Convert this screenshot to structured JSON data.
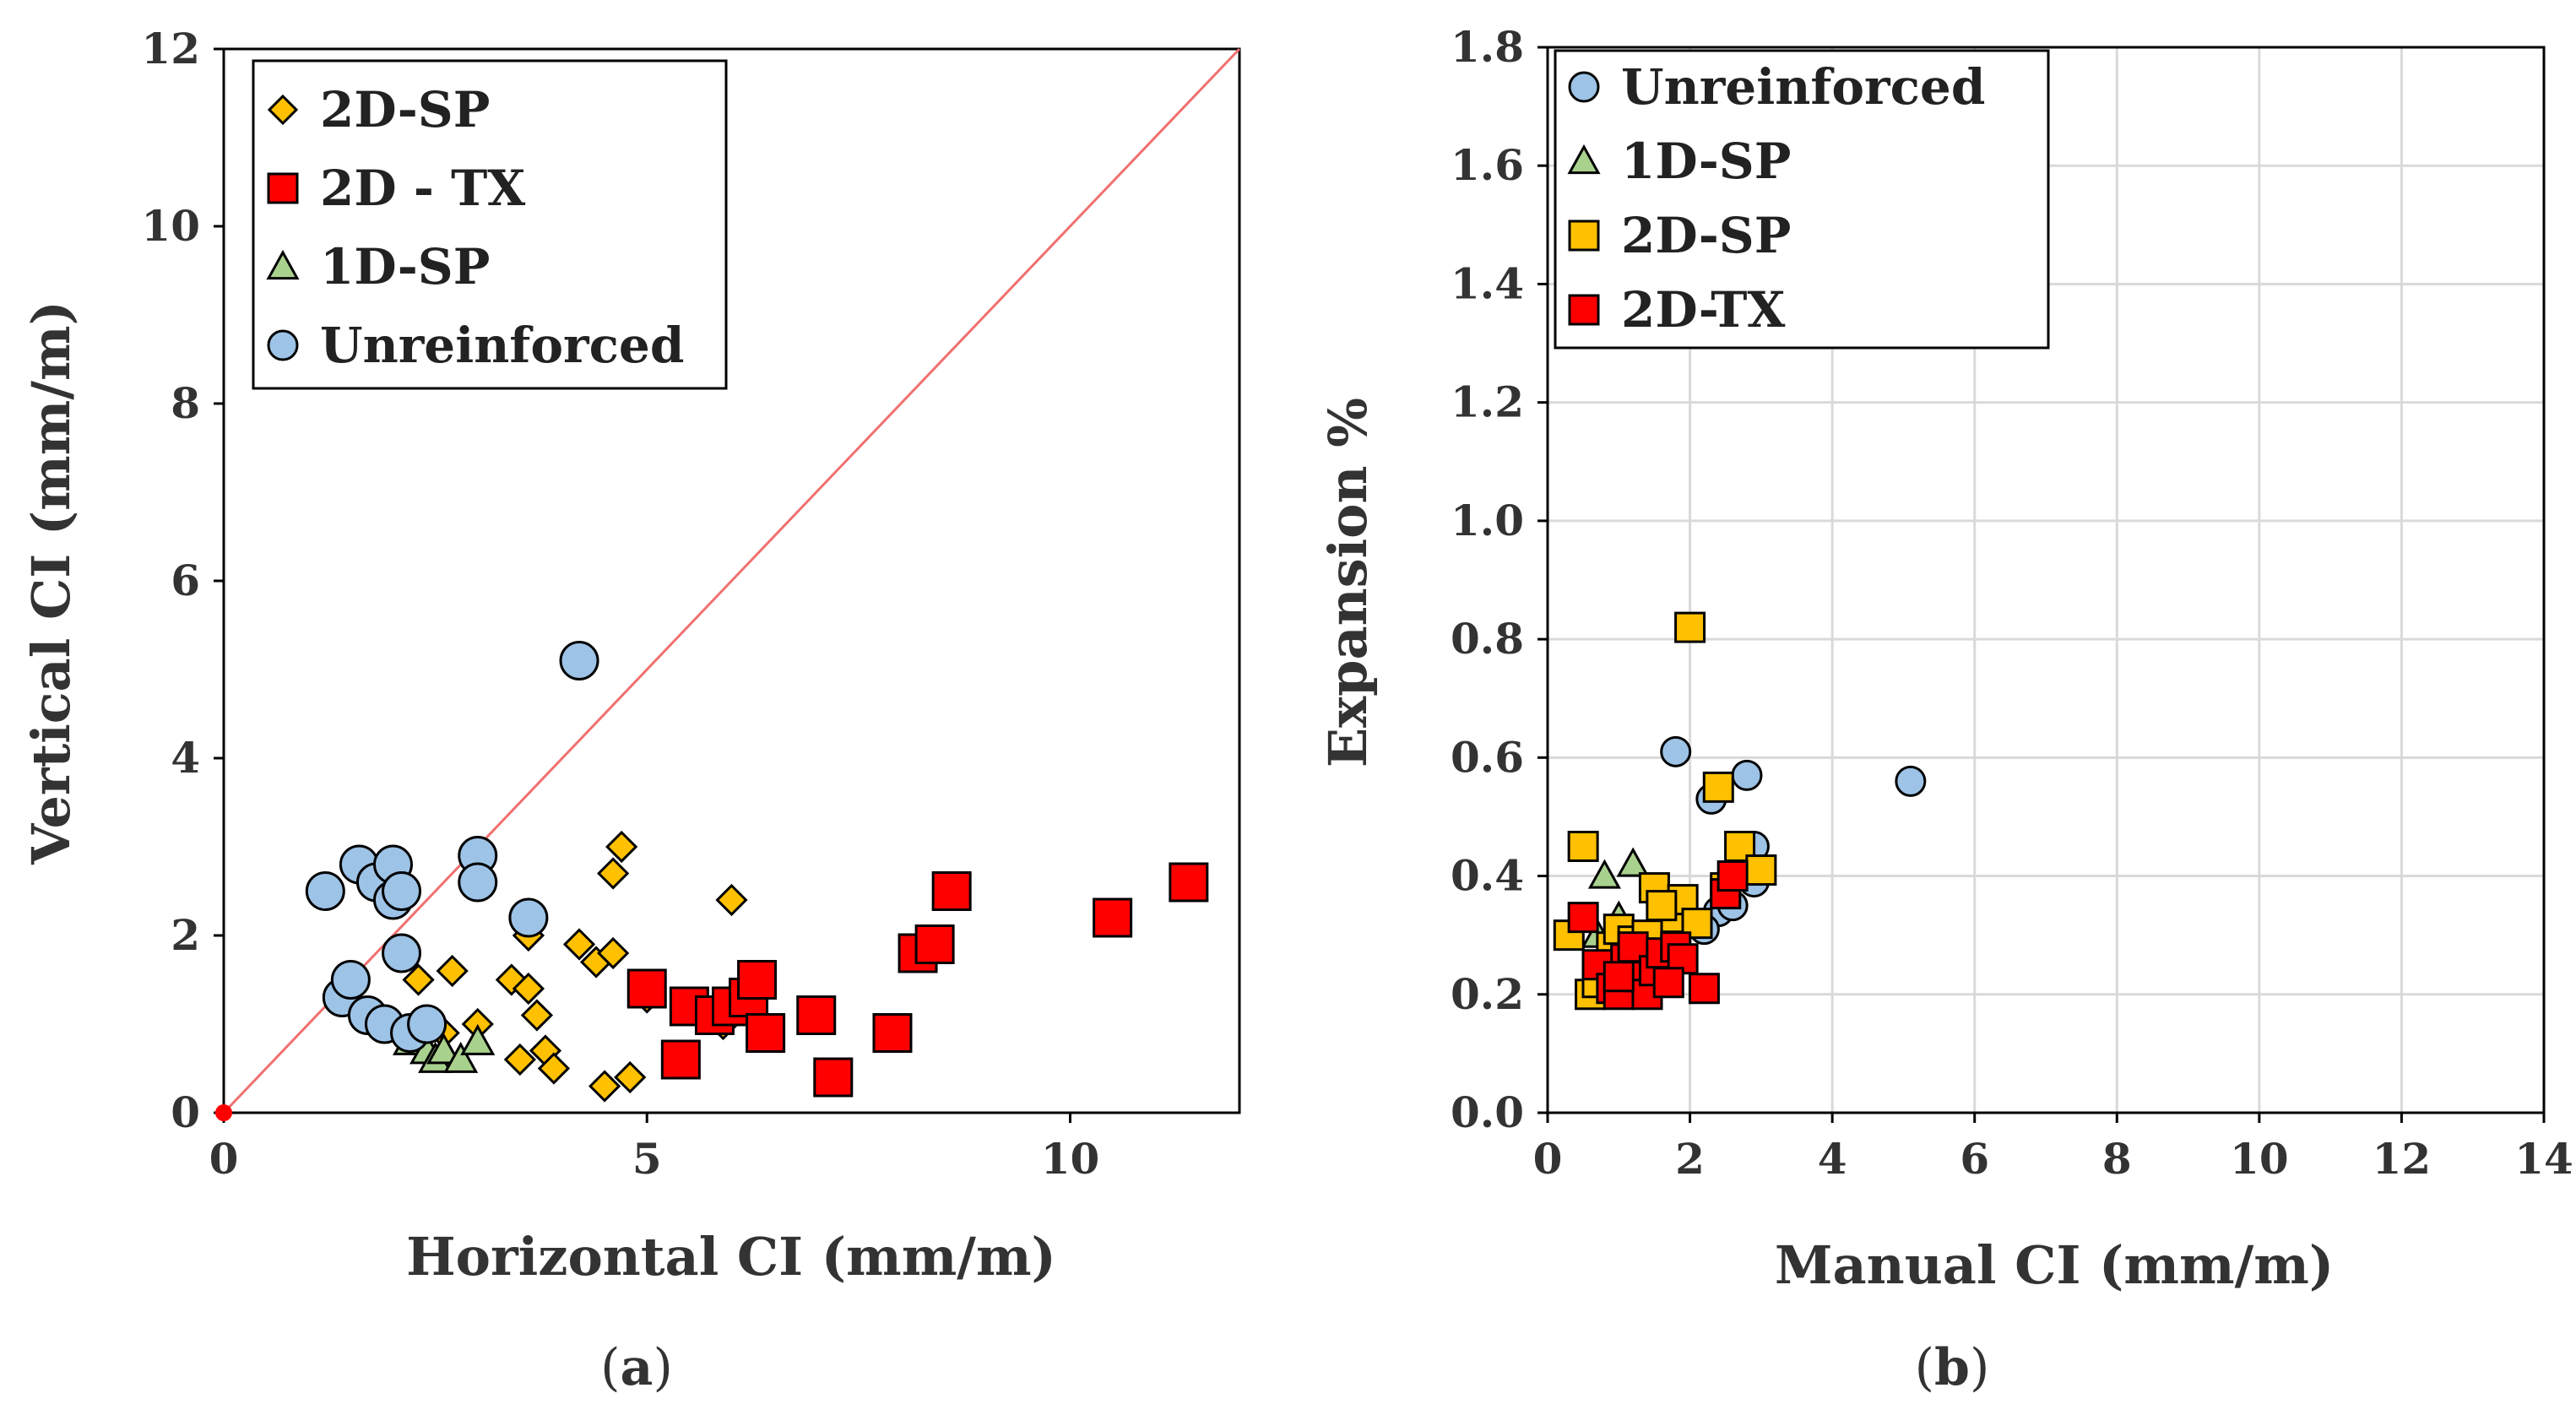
{
  "chart_data": [
    {
      "id": "a",
      "type": "scatter",
      "caption": "(a)",
      "caption_parts": [
        "(",
        "a",
        ")"
      ],
      "xlabel": "Horizontal CI (mm/m)",
      "ylabel": "Vertical CI (mm/m)",
      "xlim": [
        0,
        12
      ],
      "ylim": [
        0,
        12
      ],
      "xticks": [
        0,
        5,
        10
      ],
      "yticks": [
        0,
        2,
        4,
        6,
        8,
        10,
        12
      ],
      "grid": false,
      "legend_position": "top-left",
      "reference_line": {
        "name": "1:1 line",
        "color": "#f07070",
        "from": [
          0,
          0
        ],
        "to": [
          12,
          12
        ]
      },
      "series": [
        {
          "name": "2D-SP",
          "marker": "diamond",
          "color": "#ffc000",
          "x": [
            2.3,
            2.6,
            2.7,
            3.0,
            3.4,
            3.5,
            3.6,
            3.7,
            3.8,
            4.2,
            4.4,
            4.5,
            4.6,
            4.6,
            4.7,
            4.8,
            5.0,
            5.9,
            6.0,
            3.6,
            3.9
          ],
          "y": [
            1.5,
            0.9,
            1.6,
            1.0,
            1.5,
            0.6,
            2.0,
            1.1,
            0.7,
            1.9,
            1.7,
            0.3,
            1.8,
            2.7,
            3.0,
            0.4,
            1.3,
            1.0,
            2.4,
            1.4,
            0.5
          ]
        },
        {
          "name": "2D - TX",
          "marker": "square",
          "color": "#ff0000",
          "x": [
            5.0,
            5.4,
            5.5,
            5.8,
            6.0,
            6.2,
            6.3,
            6.4,
            7.0,
            7.2,
            7.9,
            8.2,
            8.4,
            8.6,
            10.5,
            11.4
          ],
          "y": [
            1.4,
            0.6,
            1.2,
            1.1,
            1.2,
            1.3,
            1.5,
            0.9,
            1.1,
            0.4,
            0.9,
            1.8,
            1.9,
            2.5,
            2.2,
            2.6
          ]
        },
        {
          "name": "1D-SP",
          "marker": "triangle",
          "color": "#a9d18e",
          "x": [
            2.2,
            2.4,
            2.5,
            2.6,
            2.8,
            3.0
          ],
          "y": [
            0.8,
            0.7,
            0.6,
            0.7,
            0.6,
            0.8
          ]
        },
        {
          "name": "Unreinforced",
          "marker": "circle",
          "color": "#9dc3e6",
          "x": [
            1.2,
            1.4,
            1.5,
            1.6,
            1.7,
            1.8,
            1.9,
            2.0,
            2.0,
            2.1,
            2.1,
            2.2,
            2.4,
            3.0,
            3.0,
            3.6,
            4.2
          ],
          "y": [
            2.5,
            1.3,
            1.5,
            2.8,
            1.1,
            2.6,
            1.0,
            2.4,
            2.8,
            1.8,
            2.5,
            0.9,
            1.0,
            2.9,
            2.6,
            2.2,
            5.1
          ]
        }
      ]
    },
    {
      "id": "b",
      "type": "scatter",
      "caption": "(b)",
      "caption_parts": [
        "(",
        "b",
        ")"
      ],
      "xlabel": "Manual CI (mm/m)",
      "ylabel": "Expansion %",
      "xlim": [
        0,
        14
      ],
      "ylim": [
        0,
        1.8
      ],
      "xticks": [
        0,
        2,
        4,
        6,
        8,
        10,
        12,
        14
      ],
      "yticks": [
        0.0,
        0.2,
        0.4,
        0.6,
        0.8,
        1.0,
        1.2,
        1.4,
        1.6,
        1.8
      ],
      "ytick_labels": [
        "0.0",
        "0.2",
        "0.4",
        "0.6",
        "0.8",
        "1.0",
        "1.2",
        "1.4",
        "1.6",
        "1.8"
      ],
      "grid": true,
      "legend_position": "top-left",
      "series": [
        {
          "name": "Unreinforced",
          "marker": "circle",
          "color": "#9dc3e6",
          "x": [
            1.8,
            2.3,
            2.4,
            2.6,
            2.8,
            2.9,
            2.9,
            5.1,
            2.2,
            2.5
          ],
          "y": [
            0.61,
            0.53,
            0.34,
            0.35,
            0.57,
            0.45,
            0.39,
            0.56,
            0.31,
            0.37
          ]
        },
        {
          "name": "1D-SP",
          "marker": "triangle",
          "color": "#a9d18e",
          "x": [
            0.8,
            1.2,
            0.7,
            1.0
          ],
          "y": [
            0.4,
            0.42,
            0.3,
            0.33
          ]
        },
        {
          "name": "2D-SP",
          "marker": "square",
          "color": "#ffc000",
          "x": [
            0.3,
            0.5,
            0.6,
            0.9,
            1.0,
            1.1,
            1.3,
            1.5,
            1.7,
            1.8,
            1.9,
            2.0,
            2.1,
            2.4,
            2.5,
            2.7,
            3.0,
            0.7,
            1.2,
            1.6,
            1.4
          ],
          "y": [
            0.3,
            0.45,
            0.2,
            0.28,
            0.31,
            0.26,
            0.24,
            0.38,
            0.33,
            0.27,
            0.36,
            0.82,
            0.32,
            0.55,
            0.38,
            0.45,
            0.41,
            0.22,
            0.29,
            0.35,
            0.3
          ]
        },
        {
          "name": "2D-TX",
          "marker": "square",
          "color": "#ff0000",
          "x": [
            0.5,
            0.7,
            0.9,
            1.0,
            1.1,
            1.2,
            1.3,
            1.4,
            1.5,
            1.6,
            1.8,
            1.9,
            2.2,
            2.5,
            2.6,
            1.0,
            1.7
          ],
          "y": [
            0.33,
            0.25,
            0.21,
            0.2,
            0.26,
            0.28,
            0.23,
            0.2,
            0.24,
            0.27,
            0.28,
            0.26,
            0.21,
            0.37,
            0.4,
            0.23,
            0.22
          ]
        }
      ]
    }
  ]
}
